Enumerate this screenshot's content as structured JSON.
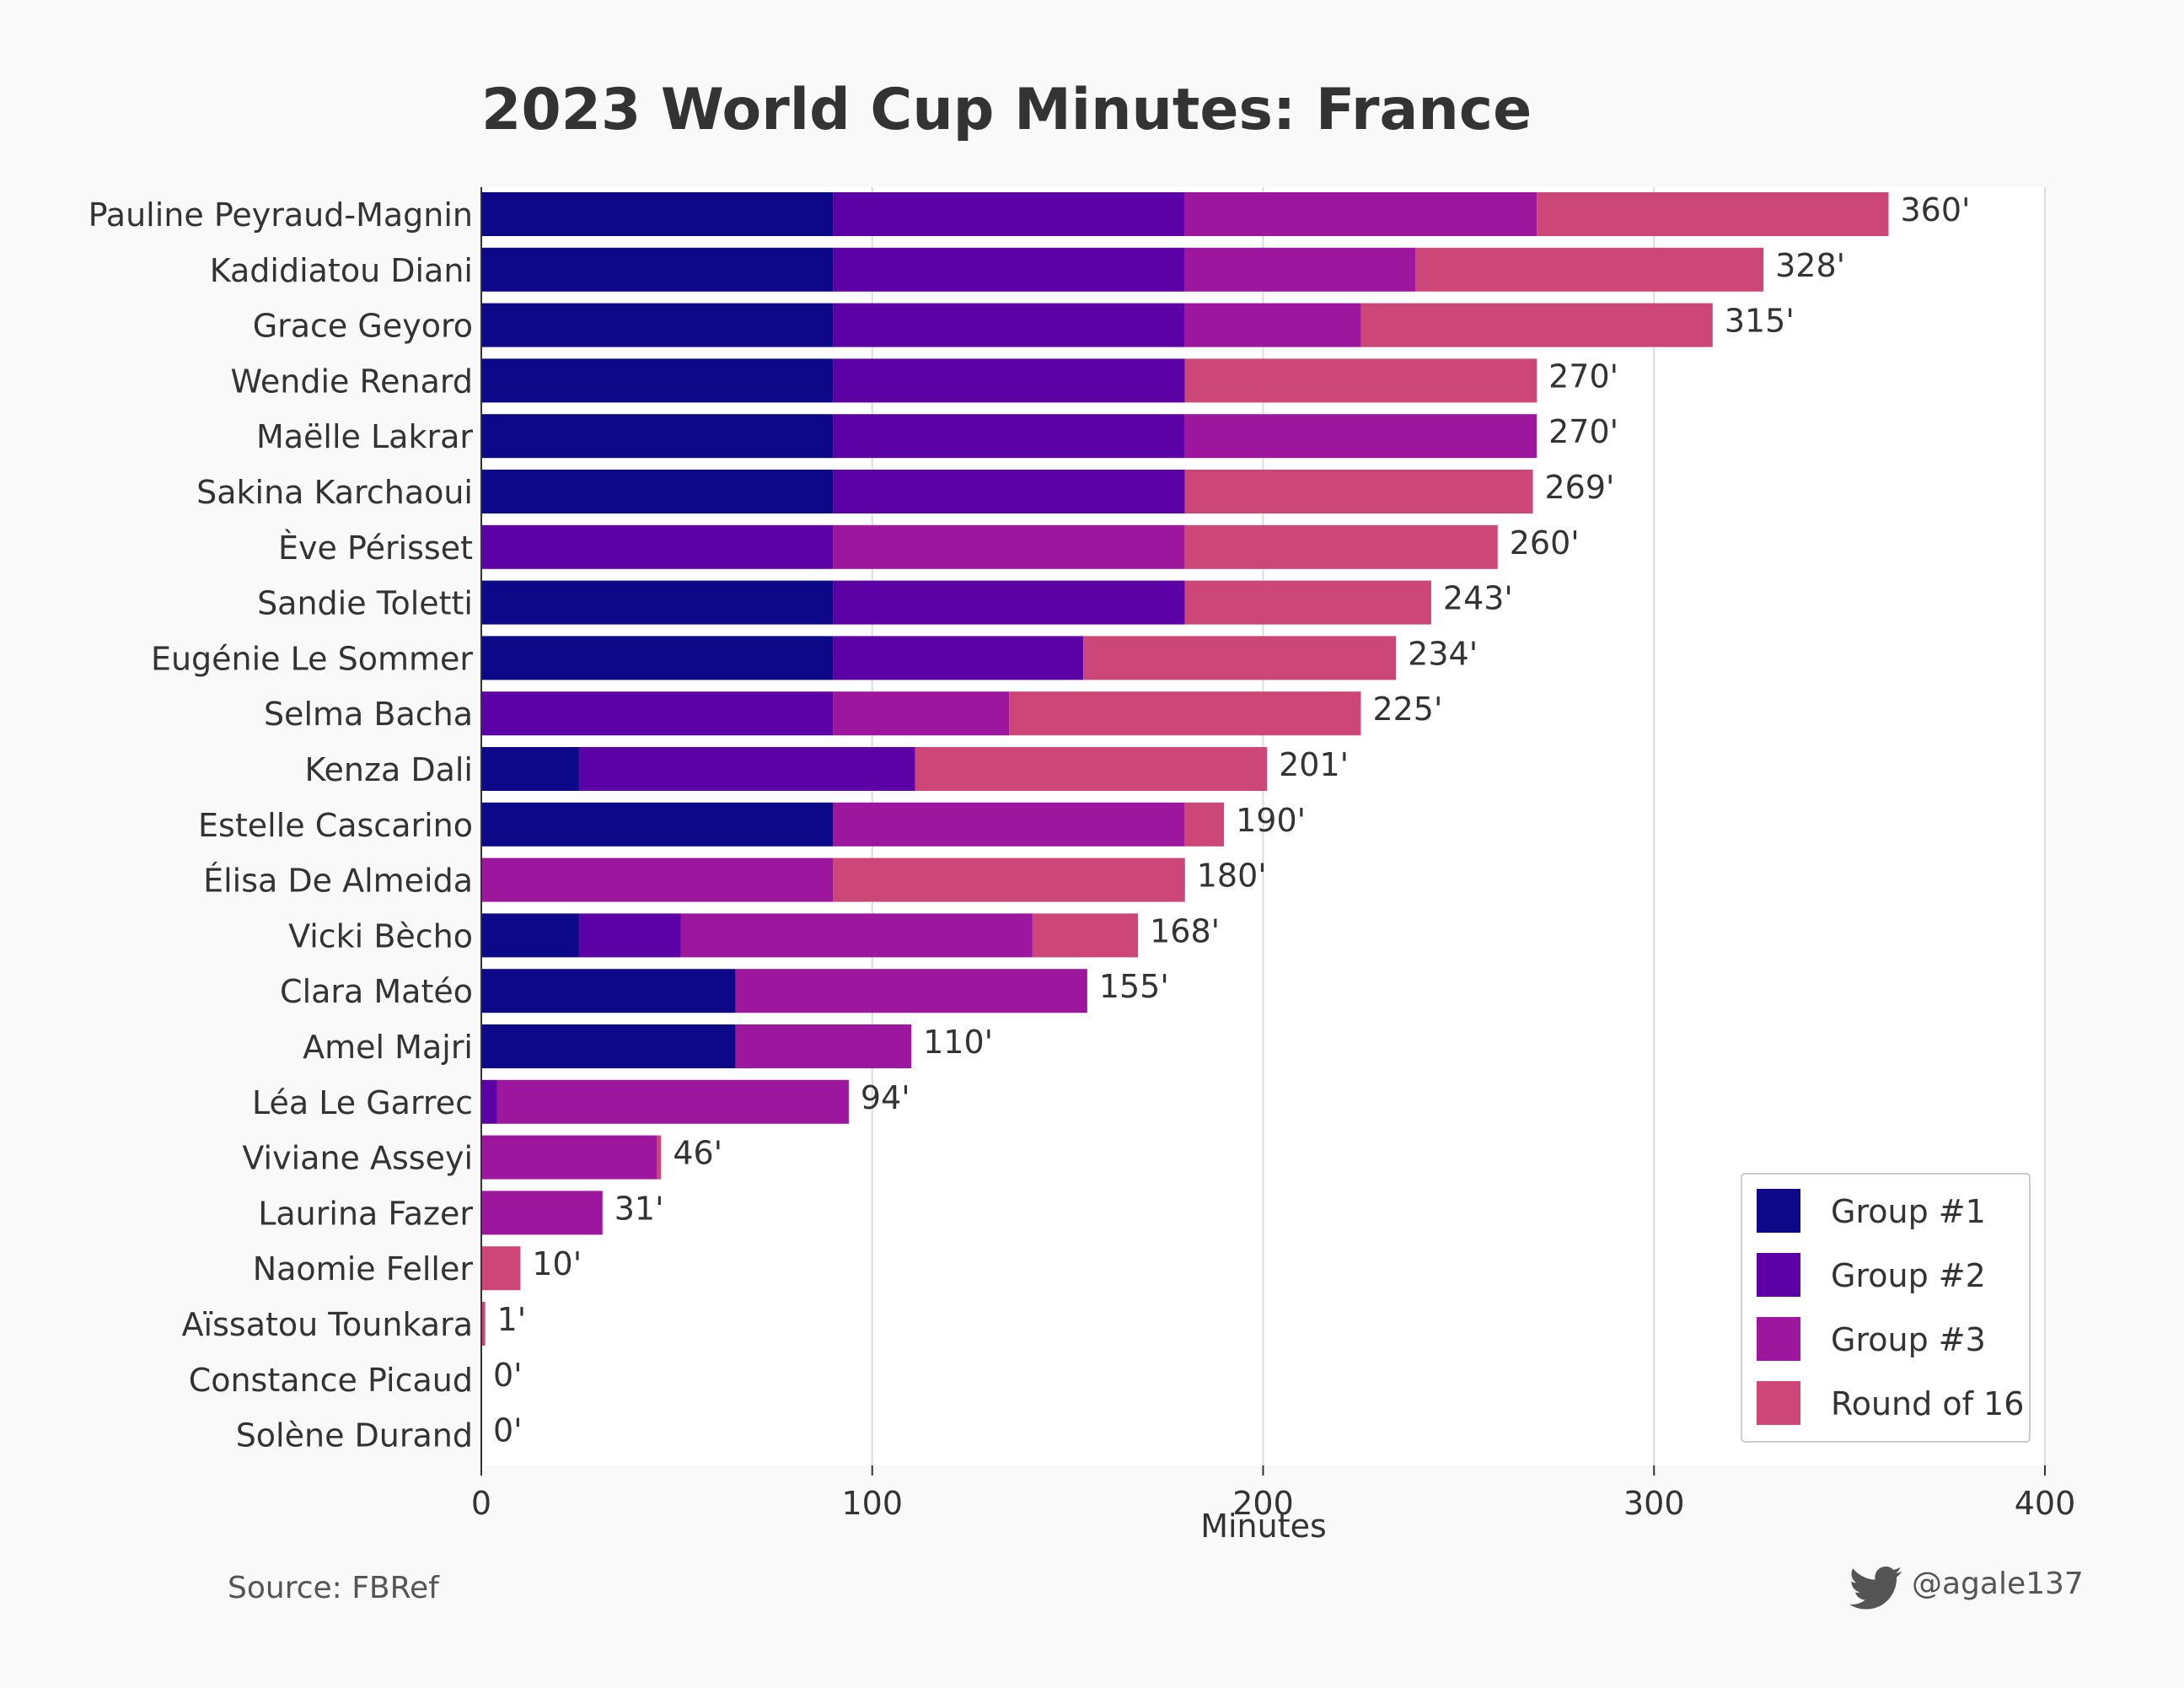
{
  "chart_data": {
    "type": "bar",
    "orientation": "horizontal",
    "stacked": true,
    "title": "2023 World Cup Minutes: France",
    "xlabel": "Minutes",
    "ylabel": "",
    "xlim": [
      0,
      400
    ],
    "xticks": [
      0,
      100,
      200,
      300,
      400
    ],
    "grid": true,
    "legend_position": "bottom-right",
    "value_suffix": "'",
    "categories": [
      "Pauline Peyraud-Magnin",
      "Kadidiatou Diani",
      "Grace Geyoro",
      "Wendie Renard",
      "Maëlle Lakrar",
      "Sakina Karchaoui",
      "Ève Périsset",
      "Sandie Toletti",
      "Eugénie Le Sommer",
      "Selma Bacha",
      "Kenza Dali",
      "Estelle Cascarino",
      "Élisa De Almeida",
      "Vicki Bècho",
      "Clara Matéo",
      "Amel Majri",
      "Léa Le Garrec",
      "Viviane Asseyi",
      "Laurina Fazer",
      "Naomie Feller",
      "Aïssatou Tounkara",
      "Constance Picaud",
      "Solène Durand"
    ],
    "series": [
      {
        "name": "Group #1",
        "color": "#0d0887",
        "values": [
          90,
          90,
          90,
          90,
          90,
          90,
          0,
          90,
          90,
          0,
          25,
          90,
          0,
          25,
          65,
          65,
          0,
          0,
          0,
          0,
          0,
          0,
          0
        ]
      },
      {
        "name": "Group #2",
        "color": "#5c01a6",
        "values": [
          90,
          90,
          90,
          90,
          90,
          90,
          90,
          90,
          64,
          90,
          86,
          0,
          0,
          26,
          0,
          0,
          4,
          0,
          0,
          0,
          0,
          0,
          0
        ]
      },
      {
        "name": "Group #3",
        "color": "#9c179e",
        "values": [
          90,
          59,
          45,
          0,
          90,
          0,
          90,
          0,
          0,
          45,
          0,
          90,
          90,
          90,
          90,
          45,
          90,
          45,
          31,
          0,
          0,
          0,
          0
        ]
      },
      {
        "name": "Round of 16",
        "color": "#cc4778",
        "values": [
          90,
          89,
          90,
          90,
          0,
          89,
          80,
          63,
          80,
          90,
          90,
          10,
          90,
          27,
          0,
          0,
          0,
          1,
          0,
          10,
          1,
          0,
          0
        ]
      }
    ],
    "totals": [
      360,
      328,
      315,
      270,
      270,
      269,
      260,
      243,
      234,
      225,
      201,
      190,
      180,
      168,
      155,
      110,
      94,
      46,
      31,
      10,
      1,
      0,
      0
    ]
  },
  "footer": {
    "source": "Source: FBRef",
    "handle": "@agale137",
    "handle_icon": "twitter-bird-icon"
  }
}
